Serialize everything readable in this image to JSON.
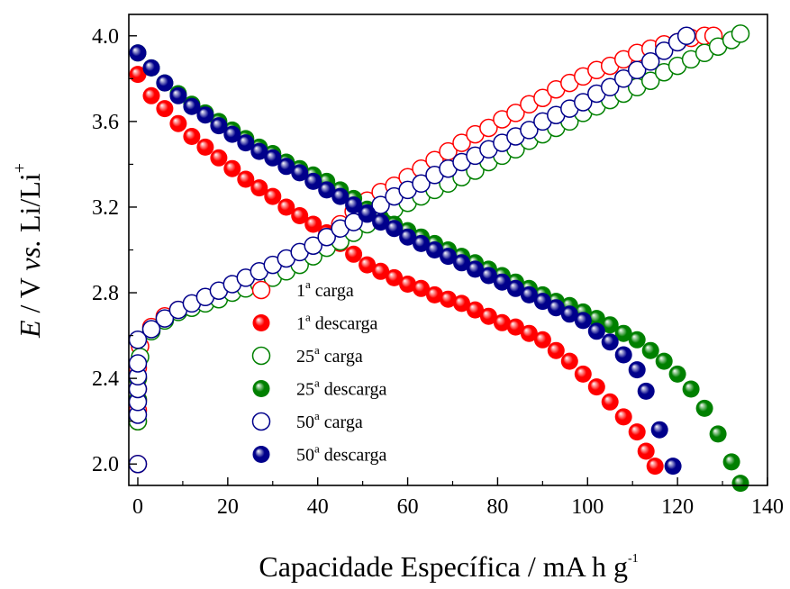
{
  "chart_data": {
    "type": "scatter",
    "title": "",
    "xlabel": "Capacidade Específica / mA h g",
    "xlabel_sup": "-1",
    "ylabel": {
      "E": "E",
      "rest": " / V ",
      "vs": "vs.",
      "li": " Li/Li",
      "sup": "+"
    },
    "xlim": [
      -2,
      140
    ],
    "ylim": [
      1.9,
      4.1
    ],
    "xticks": [
      0,
      20,
      40,
      60,
      80,
      100,
      120,
      140
    ],
    "yticks": [
      2.0,
      2.4,
      2.8,
      3.2,
      3.6,
      4.0
    ],
    "xtick_labels": [
      "0",
      "20",
      "40",
      "60",
      "80",
      "100",
      "120",
      "140"
    ],
    "ytick_labels": [
      "2.0",
      "2.4",
      "2.8",
      "3.2",
      "3.6",
      "4.0"
    ],
    "grid": false,
    "legend_position": "bottom-left",
    "series": [
      {
        "name": "1ª carga",
        "legend": {
          "num": "1",
          "sup": "a",
          "text": " carga"
        },
        "color": "#ff0000",
        "marker": "open",
        "points": [
          [
            0,
            2.0
          ],
          [
            0,
            2.2
          ],
          [
            0,
            2.25
          ],
          [
            0,
            2.3
          ],
          [
            0,
            2.35
          ],
          [
            0,
            2.4
          ],
          [
            0,
            2.45
          ],
          [
            0.5,
            2.55
          ],
          [
            3,
            2.64
          ],
          [
            6,
            2.69
          ],
          [
            9,
            2.72
          ],
          [
            12,
            2.74
          ],
          [
            15,
            2.76
          ],
          [
            18,
            2.79
          ],
          [
            21,
            2.82
          ],
          [
            24,
            2.84
          ],
          [
            27,
            2.87
          ],
          [
            30,
            2.9
          ],
          [
            33,
            2.92
          ],
          [
            36,
            2.96
          ],
          [
            39,
            3.01
          ],
          [
            42,
            3.06
          ],
          [
            45,
            3.12
          ],
          [
            48,
            3.18
          ],
          [
            51,
            3.23
          ],
          [
            54,
            3.27
          ],
          [
            57,
            3.3
          ],
          [
            60,
            3.34
          ],
          [
            63,
            3.38
          ],
          [
            66,
            3.42
          ],
          [
            69,
            3.46
          ],
          [
            72,
            3.5
          ],
          [
            75,
            3.54
          ],
          [
            78,
            3.57
          ],
          [
            81,
            3.61
          ],
          [
            84,
            3.64
          ],
          [
            87,
            3.68
          ],
          [
            90,
            3.71
          ],
          [
            93,
            3.75
          ],
          [
            96,
            3.78
          ],
          [
            99,
            3.81
          ],
          [
            102,
            3.84
          ],
          [
            105,
            3.86
          ],
          [
            108,
            3.89
          ],
          [
            111,
            3.92
          ],
          [
            114,
            3.94
          ],
          [
            117,
            3.96
          ],
          [
            120,
            3.97
          ],
          [
            123,
            3.99
          ],
          [
            126,
            4.0
          ],
          [
            128,
            4.0
          ]
        ]
      },
      {
        "name": "1ª descarga",
        "legend": {
          "num": "1",
          "sup": "a",
          "text": " descarga"
        },
        "color": "#ff0000",
        "marker": "filled",
        "points": [
          [
            0,
            3.82
          ],
          [
            3,
            3.72
          ],
          [
            6,
            3.66
          ],
          [
            9,
            3.59
          ],
          [
            12,
            3.53
          ],
          [
            15,
            3.48
          ],
          [
            18,
            3.43
          ],
          [
            21,
            3.38
          ],
          [
            24,
            3.33
          ],
          [
            27,
            3.29
          ],
          [
            30,
            3.25
          ],
          [
            33,
            3.2
          ],
          [
            36,
            3.16
          ],
          [
            39,
            3.12
          ],
          [
            42,
            3.08
          ],
          [
            45,
            3.03
          ],
          [
            48,
            2.98
          ],
          [
            51,
            2.93
          ],
          [
            54,
            2.9
          ],
          [
            57,
            2.87
          ],
          [
            60,
            2.84
          ],
          [
            63,
            2.82
          ],
          [
            66,
            2.79
          ],
          [
            69,
            2.77
          ],
          [
            72,
            2.75
          ],
          [
            75,
            2.72
          ],
          [
            78,
            2.69
          ],
          [
            81,
            2.66
          ],
          [
            84,
            2.64
          ],
          [
            87,
            2.61
          ],
          [
            90,
            2.58
          ],
          [
            93,
            2.53
          ],
          [
            96,
            2.48
          ],
          [
            99,
            2.42
          ],
          [
            102,
            2.36
          ],
          [
            105,
            2.29
          ],
          [
            108,
            2.22
          ],
          [
            111,
            2.15
          ],
          [
            113,
            2.06
          ],
          [
            115,
            1.99
          ]
        ]
      },
      {
        "name": "25ª carga",
        "legend": {
          "num": "25",
          "sup": "a",
          "text": " carga"
        },
        "color": "#008000",
        "marker": "open",
        "points": [
          [
            0,
            2.2
          ],
          [
            0,
            2.3
          ],
          [
            0,
            2.4
          ],
          [
            0.5,
            2.5
          ],
          [
            3,
            2.62
          ],
          [
            6,
            2.67
          ],
          [
            9,
            2.71
          ],
          [
            12,
            2.73
          ],
          [
            15,
            2.75
          ],
          [
            18,
            2.77
          ],
          [
            21,
            2.8
          ],
          [
            24,
            2.82
          ],
          [
            27,
            2.84
          ],
          [
            30,
            2.87
          ],
          [
            33,
            2.9
          ],
          [
            36,
            2.93
          ],
          [
            39,
            2.97
          ],
          [
            42,
            3.01
          ],
          [
            45,
            3.04
          ],
          [
            48,
            3.08
          ],
          [
            51,
            3.12
          ],
          [
            54,
            3.15
          ],
          [
            57,
            3.19
          ],
          [
            60,
            3.22
          ],
          [
            63,
            3.25
          ],
          [
            66,
            3.28
          ],
          [
            69,
            3.31
          ],
          [
            72,
            3.34
          ],
          [
            75,
            3.37
          ],
          [
            78,
            3.41
          ],
          [
            81,
            3.44
          ],
          [
            84,
            3.47
          ],
          [
            87,
            3.51
          ],
          [
            90,
            3.54
          ],
          [
            93,
            3.57
          ],
          [
            96,
            3.6
          ],
          [
            99,
            3.64
          ],
          [
            102,
            3.67
          ],
          [
            105,
            3.7
          ],
          [
            108,
            3.73
          ],
          [
            111,
            3.76
          ],
          [
            114,
            3.79
          ],
          [
            117,
            3.83
          ],
          [
            120,
            3.86
          ],
          [
            123,
            3.89
          ],
          [
            126,
            3.92
          ],
          [
            129,
            3.95
          ],
          [
            132,
            3.98
          ],
          [
            134,
            4.01
          ]
        ]
      },
      {
        "name": "25ª descarga",
        "legend": {
          "num": "25",
          "sup": "a",
          "text": " descarga"
        },
        "color": "#008000",
        "marker": "filled",
        "points": [
          [
            0,
            3.92
          ],
          [
            3,
            3.85
          ],
          [
            6,
            3.78
          ],
          [
            9,
            3.73
          ],
          [
            12,
            3.68
          ],
          [
            15,
            3.64
          ],
          [
            18,
            3.6
          ],
          [
            21,
            3.56
          ],
          [
            24,
            3.52
          ],
          [
            27,
            3.48
          ],
          [
            30,
            3.45
          ],
          [
            33,
            3.41
          ],
          [
            36,
            3.38
          ],
          [
            39,
            3.35
          ],
          [
            42,
            3.32
          ],
          [
            45,
            3.28
          ],
          [
            48,
            3.24
          ],
          [
            51,
            3.19
          ],
          [
            54,
            3.15
          ],
          [
            57,
            3.12
          ],
          [
            60,
            3.09
          ],
          [
            63,
            3.06
          ],
          [
            66,
            3.03
          ],
          [
            69,
            3.0
          ],
          [
            72,
            2.97
          ],
          [
            75,
            2.94
          ],
          [
            78,
            2.91
          ],
          [
            81,
            2.88
          ],
          [
            84,
            2.85
          ],
          [
            87,
            2.82
          ],
          [
            90,
            2.79
          ],
          [
            93,
            2.76
          ],
          [
            96,
            2.74
          ],
          [
            99,
            2.71
          ],
          [
            102,
            2.68
          ],
          [
            105,
            2.65
          ],
          [
            108,
            2.61
          ],
          [
            111,
            2.58
          ],
          [
            114,
            2.53
          ],
          [
            117,
            2.48
          ],
          [
            120,
            2.42
          ],
          [
            123,
            2.35
          ],
          [
            126,
            2.26
          ],
          [
            129,
            2.14
          ],
          [
            132,
            2.01
          ],
          [
            134,
            1.91
          ]
        ]
      },
      {
        "name": "50ª carga",
        "legend": {
          "num": "50",
          "sup": "a",
          "text": " carga"
        },
        "color": "#00008b",
        "marker": "open",
        "points": [
          [
            0,
            2.0
          ],
          [
            0,
            2.23
          ],
          [
            0,
            2.29
          ],
          [
            0,
            2.35
          ],
          [
            0,
            2.41
          ],
          [
            0,
            2.47
          ],
          [
            0,
            2.58
          ],
          [
            3,
            2.63
          ],
          [
            6,
            2.68
          ],
          [
            9,
            2.72
          ],
          [
            12,
            2.75
          ],
          [
            15,
            2.78
          ],
          [
            18,
            2.81
          ],
          [
            21,
            2.84
          ],
          [
            24,
            2.87
          ],
          [
            27,
            2.9
          ],
          [
            30,
            2.93
          ],
          [
            33,
            2.96
          ],
          [
            36,
            2.99
          ],
          [
            39,
            3.02
          ],
          [
            42,
            3.06
          ],
          [
            45,
            3.1
          ],
          [
            48,
            3.13
          ],
          [
            51,
            3.17
          ],
          [
            54,
            3.21
          ],
          [
            57,
            3.25
          ],
          [
            60,
            3.28
          ],
          [
            63,
            3.31
          ],
          [
            66,
            3.35
          ],
          [
            69,
            3.38
          ],
          [
            72,
            3.41
          ],
          [
            75,
            3.44
          ],
          [
            78,
            3.47
          ],
          [
            81,
            3.5
          ],
          [
            84,
            3.53
          ],
          [
            87,
            3.56
          ],
          [
            90,
            3.6
          ],
          [
            93,
            3.63
          ],
          [
            96,
            3.66
          ],
          [
            99,
            3.69
          ],
          [
            102,
            3.73
          ],
          [
            105,
            3.76
          ],
          [
            108,
            3.8
          ],
          [
            111,
            3.84
          ],
          [
            114,
            3.88
          ],
          [
            117,
            3.93
          ],
          [
            120,
            3.97
          ],
          [
            122,
            4.0
          ]
        ]
      },
      {
        "name": "50ª descarga",
        "legend": {
          "num": "50",
          "sup": "a",
          "text": " descarga"
        },
        "color": "#00008b",
        "marker": "filled",
        "points": [
          [
            0,
            3.92
          ],
          [
            3,
            3.85
          ],
          [
            6,
            3.78
          ],
          [
            9,
            3.72
          ],
          [
            12,
            3.67
          ],
          [
            15,
            3.63
          ],
          [
            18,
            3.58
          ],
          [
            21,
            3.54
          ],
          [
            24,
            3.5
          ],
          [
            27,
            3.46
          ],
          [
            30,
            3.43
          ],
          [
            33,
            3.39
          ],
          [
            36,
            3.36
          ],
          [
            39,
            3.32
          ],
          [
            42,
            3.28
          ],
          [
            45,
            3.25
          ],
          [
            48,
            3.21
          ],
          [
            51,
            3.17
          ],
          [
            54,
            3.13
          ],
          [
            57,
            3.1
          ],
          [
            60,
            3.06
          ],
          [
            63,
            3.03
          ],
          [
            66,
            3.0
          ],
          [
            69,
            2.97
          ],
          [
            72,
            2.94
          ],
          [
            75,
            2.91
          ],
          [
            78,
            2.88
          ],
          [
            81,
            2.85
          ],
          [
            84,
            2.82
          ],
          [
            87,
            2.79
          ],
          [
            90,
            2.76
          ],
          [
            93,
            2.73
          ],
          [
            96,
            2.7
          ],
          [
            99,
            2.67
          ],
          [
            102,
            2.62
          ],
          [
            105,
            2.57
          ],
          [
            108,
            2.51
          ],
          [
            111,
            2.44
          ],
          [
            113,
            2.34
          ],
          [
            116,
            2.16
          ],
          [
            119,
            1.99
          ]
        ]
      }
    ]
  }
}
